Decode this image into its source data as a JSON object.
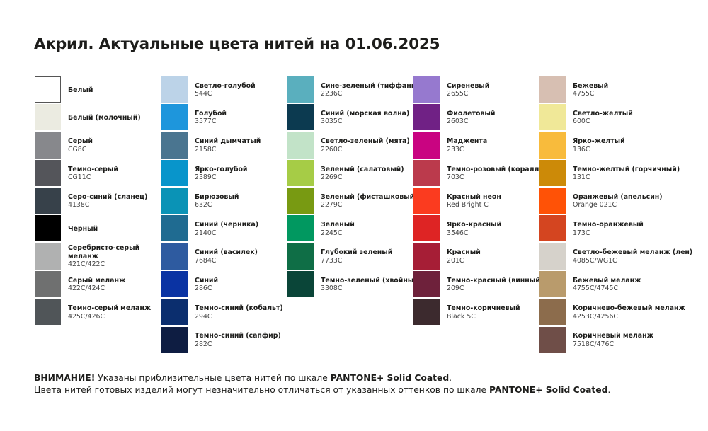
{
  "title": "Акрил. Актуальные цвета нитей на 01.06.2025",
  "columns": [
    [
      {
        "name": "Белый",
        "code": "",
        "color": "#ffffff"
      },
      {
        "name": "Белый (молочный)",
        "code": "",
        "color": "#ebebe1"
      },
      {
        "name": "Серый",
        "code": "CG8C",
        "color": "#87888c"
      },
      {
        "name": "Темно-серый",
        "code": "CG11C",
        "color": "#54555a"
      },
      {
        "name": "Серо-синий (сланец)",
        "code": "4138C",
        "color": "#37414a"
      },
      {
        "name": "Черный",
        "code": "",
        "color": "#000000"
      },
      {
        "name": "Серебристо-серый меланж",
        "code": "421C/422C",
        "color": "#b0b1b1"
      },
      {
        "name": "Серый меланж",
        "code": "422C/424C",
        "color": "#6f7070"
      },
      {
        "name": "Темно-серый меланж",
        "code": "425C/426C",
        "color": "#505558"
      }
    ],
    [
      {
        "name": "Светло-голубой",
        "code": "544C",
        "color": "#bcd3e8"
      },
      {
        "name": "Голубой",
        "code": "3577C",
        "color": "#1e96dc"
      },
      {
        "name": "Синий дымчатый",
        "code": "2158C",
        "color": "#4a7590"
      },
      {
        "name": "Ярко-голубой",
        "code": "2389C",
        "color": "#0895cb"
      },
      {
        "name": "Бирюзовый",
        "code": "632C",
        "color": "#0a93b6"
      },
      {
        "name": "Синий (черника)",
        "code": "2140C",
        "color": "#1f6b91"
      },
      {
        "name": "Синий (василек)",
        "code": "7684C",
        "color": "#2e5ba0"
      },
      {
        "name": "Синий",
        "code": "286C",
        "color": "#0a33a3"
      },
      {
        "name": "Темно-синий (кобальт)",
        "code": "294C",
        "color": "#0b2e6e"
      },
      {
        "name": "Темно-синий (сапфир)",
        "code": "282C",
        "color": "#0e1d42"
      }
    ],
    [
      {
        "name": "Сине-зеленый (тиффани)",
        "code": "2236C",
        "color": "#5aafbe"
      },
      {
        "name": "Синий (морская волна)",
        "code": "3035C",
        "color": "#0c3a50"
      },
      {
        "name": "Светло-зеленый (мята)",
        "code": "2260C",
        "color": "#c2e3c8"
      },
      {
        "name": "Зеленый (салатовый)",
        "code": "2269C",
        "color": "#a6cc46"
      },
      {
        "name": "Зеленый (фисташковый)",
        "code": "2279C",
        "color": "#789a12"
      },
      {
        "name": "Зеленый",
        "code": "2245C",
        "color": "#019860"
      },
      {
        "name": "Глубокий зеленый",
        "code": "7733C",
        "color": "#0f6e46"
      },
      {
        "name": "Темно-зеленый (хвойный)",
        "code": "3308C",
        "color": "#0a4538"
      }
    ],
    [
      {
        "name": "Сиреневый",
        "code": "2655C",
        "color": "#9679cf"
      },
      {
        "name": "Фиолетовый",
        "code": "2603C",
        "color": "#702185"
      },
      {
        "name": "Маджента",
        "code": "233C",
        "color": "#c90481"
      },
      {
        "name": "Темно-розовый (коралл)",
        "code": "703C",
        "color": "#bb3a4c"
      },
      {
        "name": "Красный неон",
        "code": "Red Bright C",
        "color": "#fb3b1f"
      },
      {
        "name": "Ярко-красный",
        "code": "3546C",
        "color": "#de2424"
      },
      {
        "name": "Красный",
        "code": "201C",
        "color": "#a61e36"
      },
      {
        "name": "Темно-красный (винный)",
        "code": "209C",
        "color": "#6e213b"
      },
      {
        "name": "Темно-коричневый",
        "code": "Black 5C",
        "color": "#3c2a2e"
      }
    ],
    [
      {
        "name": "Бежевый",
        "code": "4755C",
        "color": "#d7bfb2"
      },
      {
        "name": "Светло-желтый",
        "code": "600C",
        "color": "#f0e898"
      },
      {
        "name": "Ярко-желтый",
        "code": "136C",
        "color": "#f8bb3c"
      },
      {
        "name": "Темно-желтый (горчичный)",
        "code": "131C",
        "color": "#cc8a08"
      },
      {
        "name": "Оранжевый (апельсин)",
        "code": "Orange 021C",
        "color": "#ff5206"
      },
      {
        "name": "Темно-оранжевый",
        "code": "173C",
        "color": "#d44520"
      },
      {
        "name": "Светло-бежевый меланж (лен)",
        "code": "4085C/WG1C",
        "color": "#d6d2cb"
      },
      {
        "name": "Бежевый меланж",
        "code": "4755C/4745C",
        "color": "#b99b6c"
      },
      {
        "name": "Коричнево-бежевый меланж",
        "code": "4253C/4256C",
        "color": "#8c6c4c"
      },
      {
        "name": "Коричневый меланж",
        "code": "7518C/476C",
        "color": "#6f4e48"
      }
    ]
  ],
  "footer": {
    "line1_bold": "ВНИМАНИЕ!",
    "line1_text": " Указаны приблизительные цвета нитей по шкале ",
    "line1_scale": "PANTONE+ Solid Coated",
    "line1_end": ".",
    "line2_text": "Цвета нитей готовых изделий могут незначительно отличаться от указанных оттенков по шкале ",
    "line2_scale": "PANTONE+ Solid Coated",
    "line2_end": "."
  }
}
